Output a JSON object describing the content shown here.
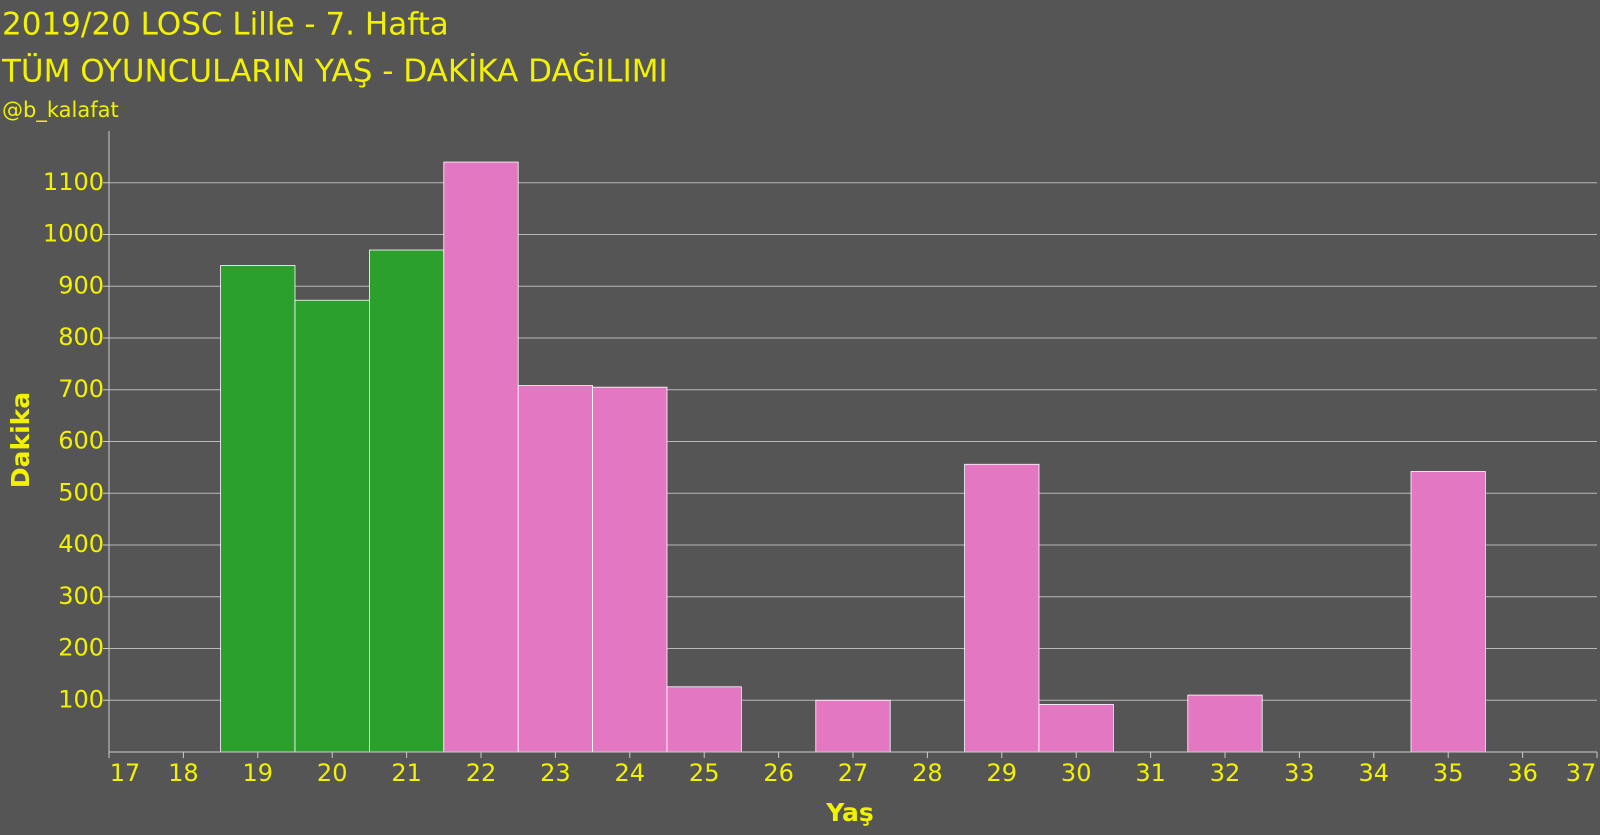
{
  "chart_data": {
    "type": "histogram",
    "title": "2019/20 LOSC Lille - 7. Hafta",
    "subtitle": "TÜM OYUNCULARIN YAŞ - DAKİKA DAĞILIMI",
    "annotation": "@b_kalafat",
    "x_label": "Yaş",
    "y_label": "Dakika",
    "bins": [
      18.5,
      19.5,
      20.5,
      21.5,
      22.5,
      23.5,
      24.5,
      25.5,
      26.5,
      27.5,
      28.5,
      29.5,
      30.5,
      31.5,
      32.5,
      33.5,
      34.5,
      35.5
    ],
    "values": [
      940,
      873,
      970,
      1140,
      708,
      705,
      126,
      0,
      100,
      0,
      556,
      92,
      0,
      110,
      0,
      0,
      542
    ],
    "colors": [
      "#2ca02c",
      "#2ca02c",
      "#2ca02c",
      "#e377c2",
      "#e377c2",
      "#e377c2",
      "#e377c2",
      "#e377c2",
      "#e377c2",
      "#e377c2",
      "#e377c2",
      "#e377c2",
      "#e377c2",
      "#e377c2",
      "#e377c2",
      "#e377c2",
      "#e377c2"
    ],
    "xlim": [
      17,
      37
    ],
    "xticks": [
      17,
      18,
      19,
      20,
      21,
      22,
      23,
      24,
      25,
      26,
      27,
      28,
      29,
      30,
      31,
      32,
      33,
      34,
      35,
      36,
      37
    ],
    "ylim": [
      0,
      1200
    ],
    "yticks": [
      100,
      200,
      300,
      400,
      500,
      600,
      700,
      800,
      900,
      1000,
      1100
    ],
    "grid": true
  }
}
